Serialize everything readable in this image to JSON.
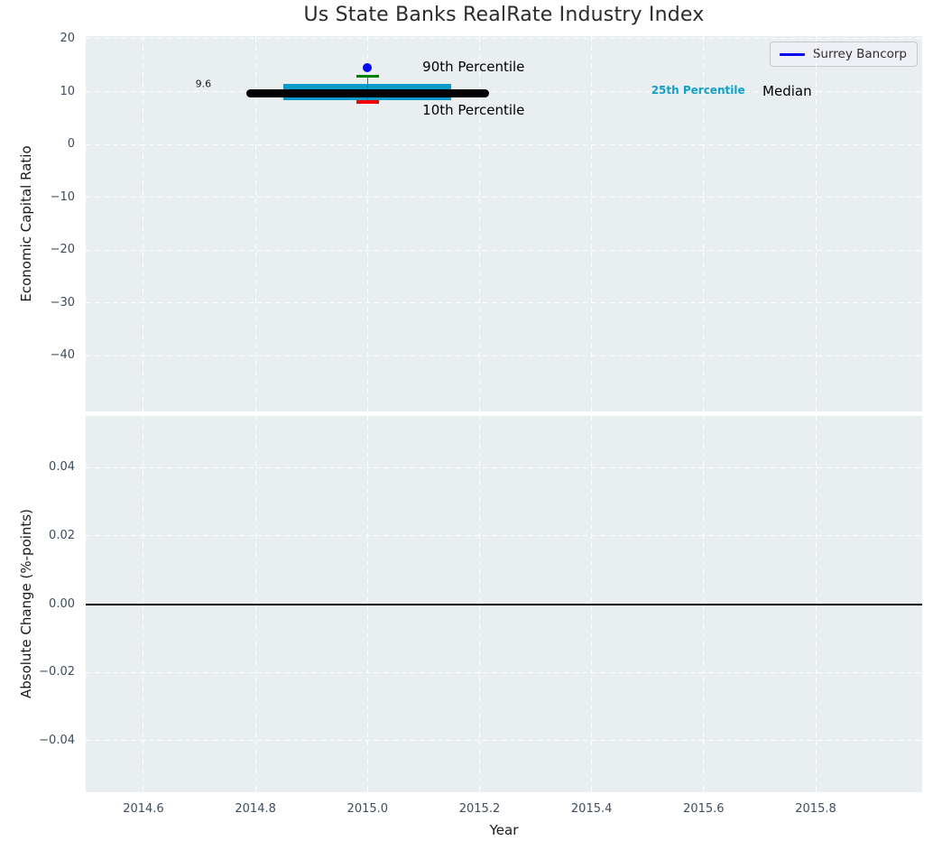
{
  "figure": {
    "title": "Us State Banks RealRate Industry Index",
    "background": "#ffffff",
    "axes_background": "#e9eef0",
    "grid_color": "#ffffff",
    "tick_color": "#3d4c5e"
  },
  "chart_data": [
    {
      "type": "box-percentile",
      "panel": "top",
      "title": "Us State Banks RealRate Industry Index",
      "ylabel": "Economic Capital Ratio",
      "xlim": [
        2014.497,
        2015.99
      ],
      "ylim": [
        -50.5,
        20.5
      ],
      "grid": true,
      "xticks": [
        2014.6,
        2014.8,
        2015.0,
        2015.2,
        2015.4,
        2015.6,
        2015.8
      ],
      "xtick_labels": [
        "2014.6",
        "2014.8",
        "2015.0",
        "2015.2",
        "2015.4",
        "2015.6",
        "2015.8"
      ],
      "show_xtick_labels": false,
      "yticks": [
        20,
        10,
        0,
        -10,
        -20,
        -30,
        -40
      ],
      "ytick_labels": [
        "20",
        "10",
        "0",
        "−10",
        "−20",
        "−30",
        "−40"
      ],
      "series": {
        "x": 2015.0,
        "p10": 8.0,
        "p25": 8.4,
        "median": 9.6,
        "p75": 11.5,
        "p90": 12.9,
        "company_name": "Surrey Bancorp",
        "company_value": 14.5,
        "median_line_x": [
          2014.79,
          2015.21
        ],
        "band_x": [
          2014.85,
          2015.15
        ]
      },
      "colors": {
        "band": "#0d9cca",
        "median_line": "#000000",
        "p90_cap": "#008000",
        "p10_cap": "#fa0000",
        "whisker": "#606060",
        "company_dot": "#0505f5"
      },
      "annotations": [
        {
          "text": "9.6",
          "x": 2014.707,
          "y": 11.5,
          "color": "#1a1a1a",
          "size": 11,
          "bold": false,
          "align": "center"
        },
        {
          "text": "90th Percentile",
          "x": 2015.098,
          "y": 14.7,
          "color": "#000000",
          "size": 15,
          "bold": false,
          "align": "left"
        },
        {
          "text": "10th Percentile",
          "x": 2015.098,
          "y": 6.5,
          "color": "#000000",
          "size": 15,
          "bold": false,
          "align": "left"
        },
        {
          "text": "25th Percentile",
          "x": 2015.59,
          "y": 10.2,
          "color": "#129fc9",
          "size": 12,
          "bold": true,
          "align": "center"
        },
        {
          "text": "Median",
          "x": 2015.705,
          "y": 10.1,
          "color": "#000000",
          "size": 15,
          "bold": false,
          "align": "left"
        }
      ],
      "legend": {
        "label": "Surrey Bancorp",
        "line_color": "#0505f5",
        "location": "upper right"
      }
    },
    {
      "type": "line",
      "panel": "bottom",
      "ylabel": "Absolute Change (%-points)",
      "xlabel": "Year",
      "xlim": [
        2014.497,
        2015.99
      ],
      "ylim": [
        -0.0552,
        0.0552
      ],
      "grid": true,
      "xticks": [
        2014.6,
        2014.8,
        2015.0,
        2015.2,
        2015.4,
        2015.6,
        2015.8
      ],
      "xtick_labels": [
        "2014.6",
        "2014.8",
        "2015.0",
        "2015.2",
        "2015.4",
        "2015.6",
        "2015.8"
      ],
      "show_xtick_labels": true,
      "yticks": [
        0.04,
        0.02,
        0.0,
        -0.02,
        -0.04
      ],
      "ytick_labels": [
        "0.04",
        "0.02",
        "0.00",
        "−0.02",
        "−0.04"
      ],
      "zero_line": {
        "y": 0.0,
        "color": "#000000"
      },
      "series": []
    }
  ]
}
